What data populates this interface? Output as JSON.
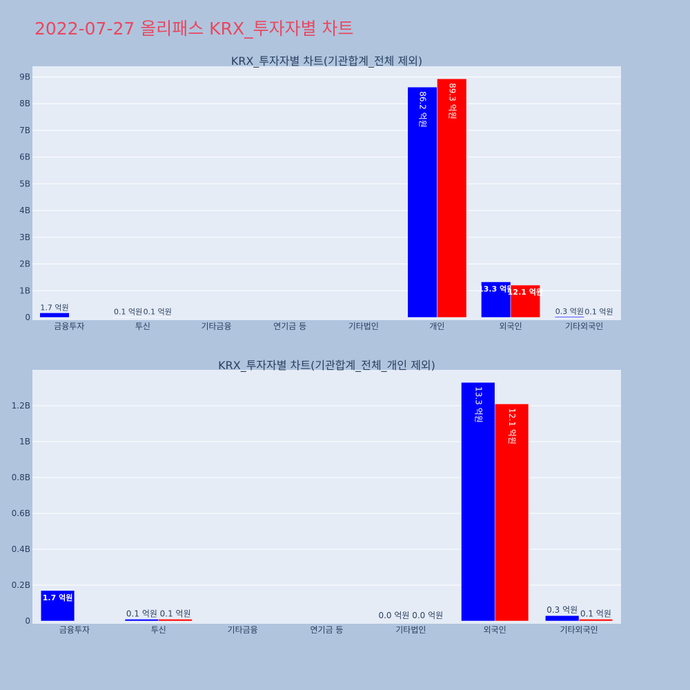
{
  "page": {
    "title": "2022-07-27 올리패스 KRX_투자자별 차트"
  },
  "chart_data": [
    {
      "type": "bar",
      "title": "KRX_투자자별 차트(기관합계_전체 제외)",
      "categories": [
        "금융투자",
        "투신",
        "기타금융",
        "연기금 등",
        "기타법인",
        "개인",
        "외국인",
        "기타외국인"
      ],
      "series": [
        {
          "color": "#0000ff",
          "values": [
            170000000,
            10000000,
            null,
            0,
            null,
            8620000000,
            1330000000,
            30000000
          ],
          "labels": [
            "1.7 억원",
            "0.1 억원",
            "",
            "",
            "",
            "86.2 억원",
            "13.3 억원",
            "0.3 억원"
          ]
        },
        {
          "color": "#ff0000",
          "values": [
            0,
            10000000,
            null,
            0,
            null,
            8930000000,
            1210000000,
            10000000
          ],
          "labels": [
            "",
            "0.1 억원",
            "",
            "",
            "",
            "89.3 억원",
            "12.1 억원",
            "0.1 억원"
          ]
        }
      ],
      "yticks": [
        {
          "v": 0,
          "label": "0"
        },
        {
          "v": 1000000000,
          "label": "1B"
        },
        {
          "v": 2000000000,
          "label": "2B"
        },
        {
          "v": 3000000000,
          "label": "3B"
        },
        {
          "v": 4000000000,
          "label": "4B"
        },
        {
          "v": 5000000000,
          "label": "5B"
        },
        {
          "v": 6000000000,
          "label": "6B"
        },
        {
          "v": 7000000000,
          "label": "7B"
        },
        {
          "v": 8000000000,
          "label": "8B"
        },
        {
          "v": 9000000000,
          "label": "9B"
        }
      ],
      "ylim": [
        0,
        9400000000
      ],
      "grid": true
    },
    {
      "type": "bar",
      "title": "KRX_투자자별 차트(기관합계_전체_개인 제외)",
      "categories": [
        "금융투자",
        "투신",
        "기타금융",
        "연기금 등",
        "기타법인",
        "외국인",
        "기타외국인"
      ],
      "series": [
        {
          "color": "#0000ff",
          "values": [
            170000000,
            10000000,
            null,
            null,
            0,
            1330000000,
            30000000
          ],
          "labels": [
            "1.7 억원",
            "0.1 억원",
            "",
            "",
            "0.0 억원",
            "13.3 억원",
            "0.3 억원"
          ]
        },
        {
          "color": "#ff0000",
          "values": [
            0,
            10000000,
            null,
            null,
            0,
            1210000000,
            10000000
          ],
          "labels": [
            "",
            "0.1 억원",
            "",
            "",
            "0.0 억원",
            "12.1 억원",
            "0.1 억원"
          ]
        }
      ],
      "yticks": [
        {
          "v": 0,
          "label": "0"
        },
        {
          "v": 200000000,
          "label": "0.2B"
        },
        {
          "v": 400000000,
          "label": "0.4B"
        },
        {
          "v": 600000000,
          "label": "0.6B"
        },
        {
          "v": 800000000,
          "label": "0.8B"
        },
        {
          "v": 1000000000,
          "label": "1B"
        },
        {
          "v": 1200000000,
          "label": "1.2B"
        }
      ],
      "ylim": [
        0,
        1400000000
      ],
      "grid": true
    }
  ]
}
